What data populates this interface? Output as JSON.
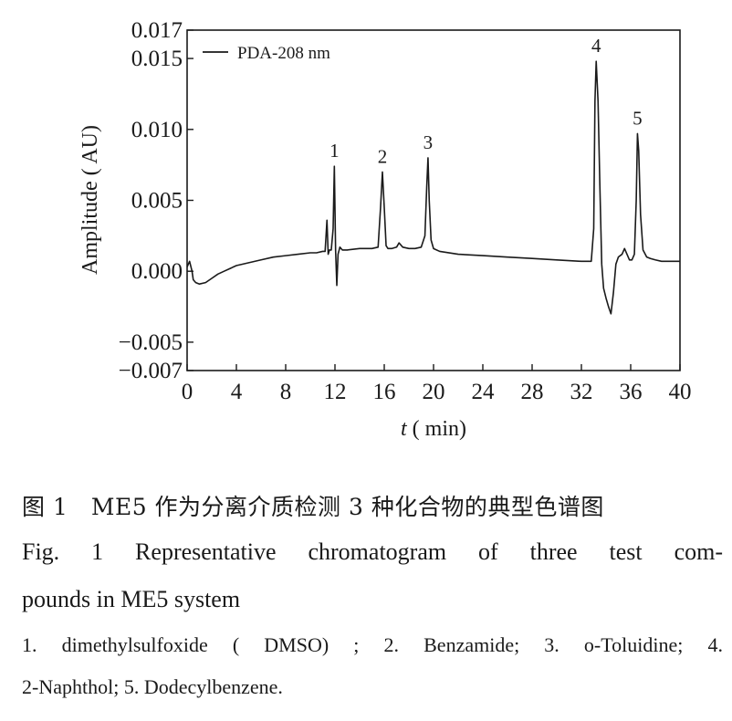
{
  "chart_data": {
    "type": "line",
    "xlabel_italic": "t",
    "xlabel_rest": "( min)",
    "ylabel": "Amplitude ( AU)",
    "xlim": [
      0,
      40
    ],
    "ylim": [
      -0.007,
      0.017
    ],
    "xticks": [
      "0",
      "4",
      "8",
      "12",
      "16",
      "20",
      "24",
      "28",
      "32",
      "36",
      "40"
    ],
    "yticks": [
      {
        "value": 0.017,
        "label": "0.017"
      },
      {
        "value": 0.015,
        "label": "0.015"
      },
      {
        "value": 0.01,
        "label": "0.010"
      },
      {
        "value": 0.005,
        "label": "0.005"
      },
      {
        "value": 0.0,
        "label": "0.000"
      },
      {
        "value": -0.005,
        "label": "−0.005"
      },
      {
        "value": -0.007,
        "label": "−0.007"
      }
    ],
    "legend": {
      "label": "PDA-208 nm",
      "position": "top-left"
    },
    "grid": false,
    "series": [
      {
        "name": "PDA-208 nm",
        "color": "#1a1a1a",
        "x": [
          0.0,
          0.2,
          0.4,
          0.5,
          0.7,
          1.0,
          1.5,
          2.0,
          2.5,
          3.0,
          3.5,
          4.0,
          5.0,
          6.0,
          7.0,
          8.0,
          9.0,
          10.0,
          10.5,
          11.0,
          11.2,
          11.35,
          11.45,
          11.55,
          11.7,
          11.85,
          11.95,
          12.05,
          12.15,
          12.25,
          12.4,
          12.6,
          13.0,
          14.0,
          15.0,
          15.5,
          15.7,
          15.85,
          16.0,
          16.15,
          16.3,
          16.6,
          17.0,
          17.2,
          17.5,
          18.0,
          18.5,
          19.0,
          19.3,
          19.45,
          19.55,
          19.65,
          19.8,
          20.0,
          20.5,
          22.0,
          24.0,
          26.0,
          28.0,
          30.0,
          32.0,
          32.8,
          33.0,
          33.1,
          33.2,
          33.35,
          33.5,
          33.65,
          33.8,
          34.0,
          34.2,
          34.4,
          34.6,
          34.8,
          35.0,
          35.3,
          35.5,
          35.7,
          35.9,
          36.1,
          36.3,
          36.45,
          36.55,
          36.65,
          36.8,
          37.0,
          37.3,
          37.6,
          38.0,
          38.5,
          39.0,
          39.5,
          40.0
        ],
        "y": [
          0.0003,
          0.0007,
          0.0,
          -0.0006,
          -0.0008,
          -0.0009,
          -0.0008,
          -0.0005,
          -0.0002,
          0.0,
          0.0002,
          0.0004,
          0.0006,
          0.0008,
          0.001,
          0.0011,
          0.0012,
          0.0013,
          0.0013,
          0.0014,
          0.0014,
          0.0036,
          0.0012,
          0.0015,
          0.0015,
          0.003,
          0.0074,
          0.0015,
          -0.001,
          0.0012,
          0.0017,
          0.0015,
          0.0015,
          0.0016,
          0.0016,
          0.0017,
          0.0045,
          0.007,
          0.0045,
          0.0018,
          0.0016,
          0.0016,
          0.0017,
          0.002,
          0.0017,
          0.0016,
          0.0016,
          0.0017,
          0.0025,
          0.006,
          0.008,
          0.005,
          0.0022,
          0.0016,
          0.0014,
          0.0012,
          0.0011,
          0.001,
          0.0009,
          0.0008,
          0.0007,
          0.0007,
          0.003,
          0.012,
          0.0148,
          0.012,
          0.006,
          0.0005,
          -0.0012,
          -0.0019,
          -0.0025,
          -0.003,
          -0.0015,
          0.0005,
          0.001,
          0.0012,
          0.0016,
          0.0012,
          0.0008,
          0.0008,
          0.0012,
          0.005,
          0.0097,
          0.0085,
          0.004,
          0.0015,
          0.001,
          0.0009,
          0.0008,
          0.0007,
          0.0007,
          0.0007,
          0.0007
        ]
      }
    ],
    "peak_labels": [
      {
        "label": "1",
        "x": 11.95,
        "y": 0.0074
      },
      {
        "label": "2",
        "x": 15.85,
        "y": 0.007
      },
      {
        "label": "3",
        "x": 19.55,
        "y": 0.008
      },
      {
        "label": "4",
        "x": 33.2,
        "y": 0.0148
      },
      {
        "label": "5",
        "x": 36.55,
        "y": 0.0097
      }
    ]
  },
  "caption": {
    "cn": "图 1　ME5 作为分离介质检测 3 种化合物的典型色谱图",
    "en_line1": "Fig. 1 Representative chromatogram of three test com-",
    "en_line2": "pounds in ME5 system",
    "compounds_line1": "1. dimethylsulfoxide ( DMSO) ; 2. Benzamide; 3. o-Toluidine; 4.",
    "compounds_line2": "2-Naphthol; 5. Dodecylbenzene."
  }
}
